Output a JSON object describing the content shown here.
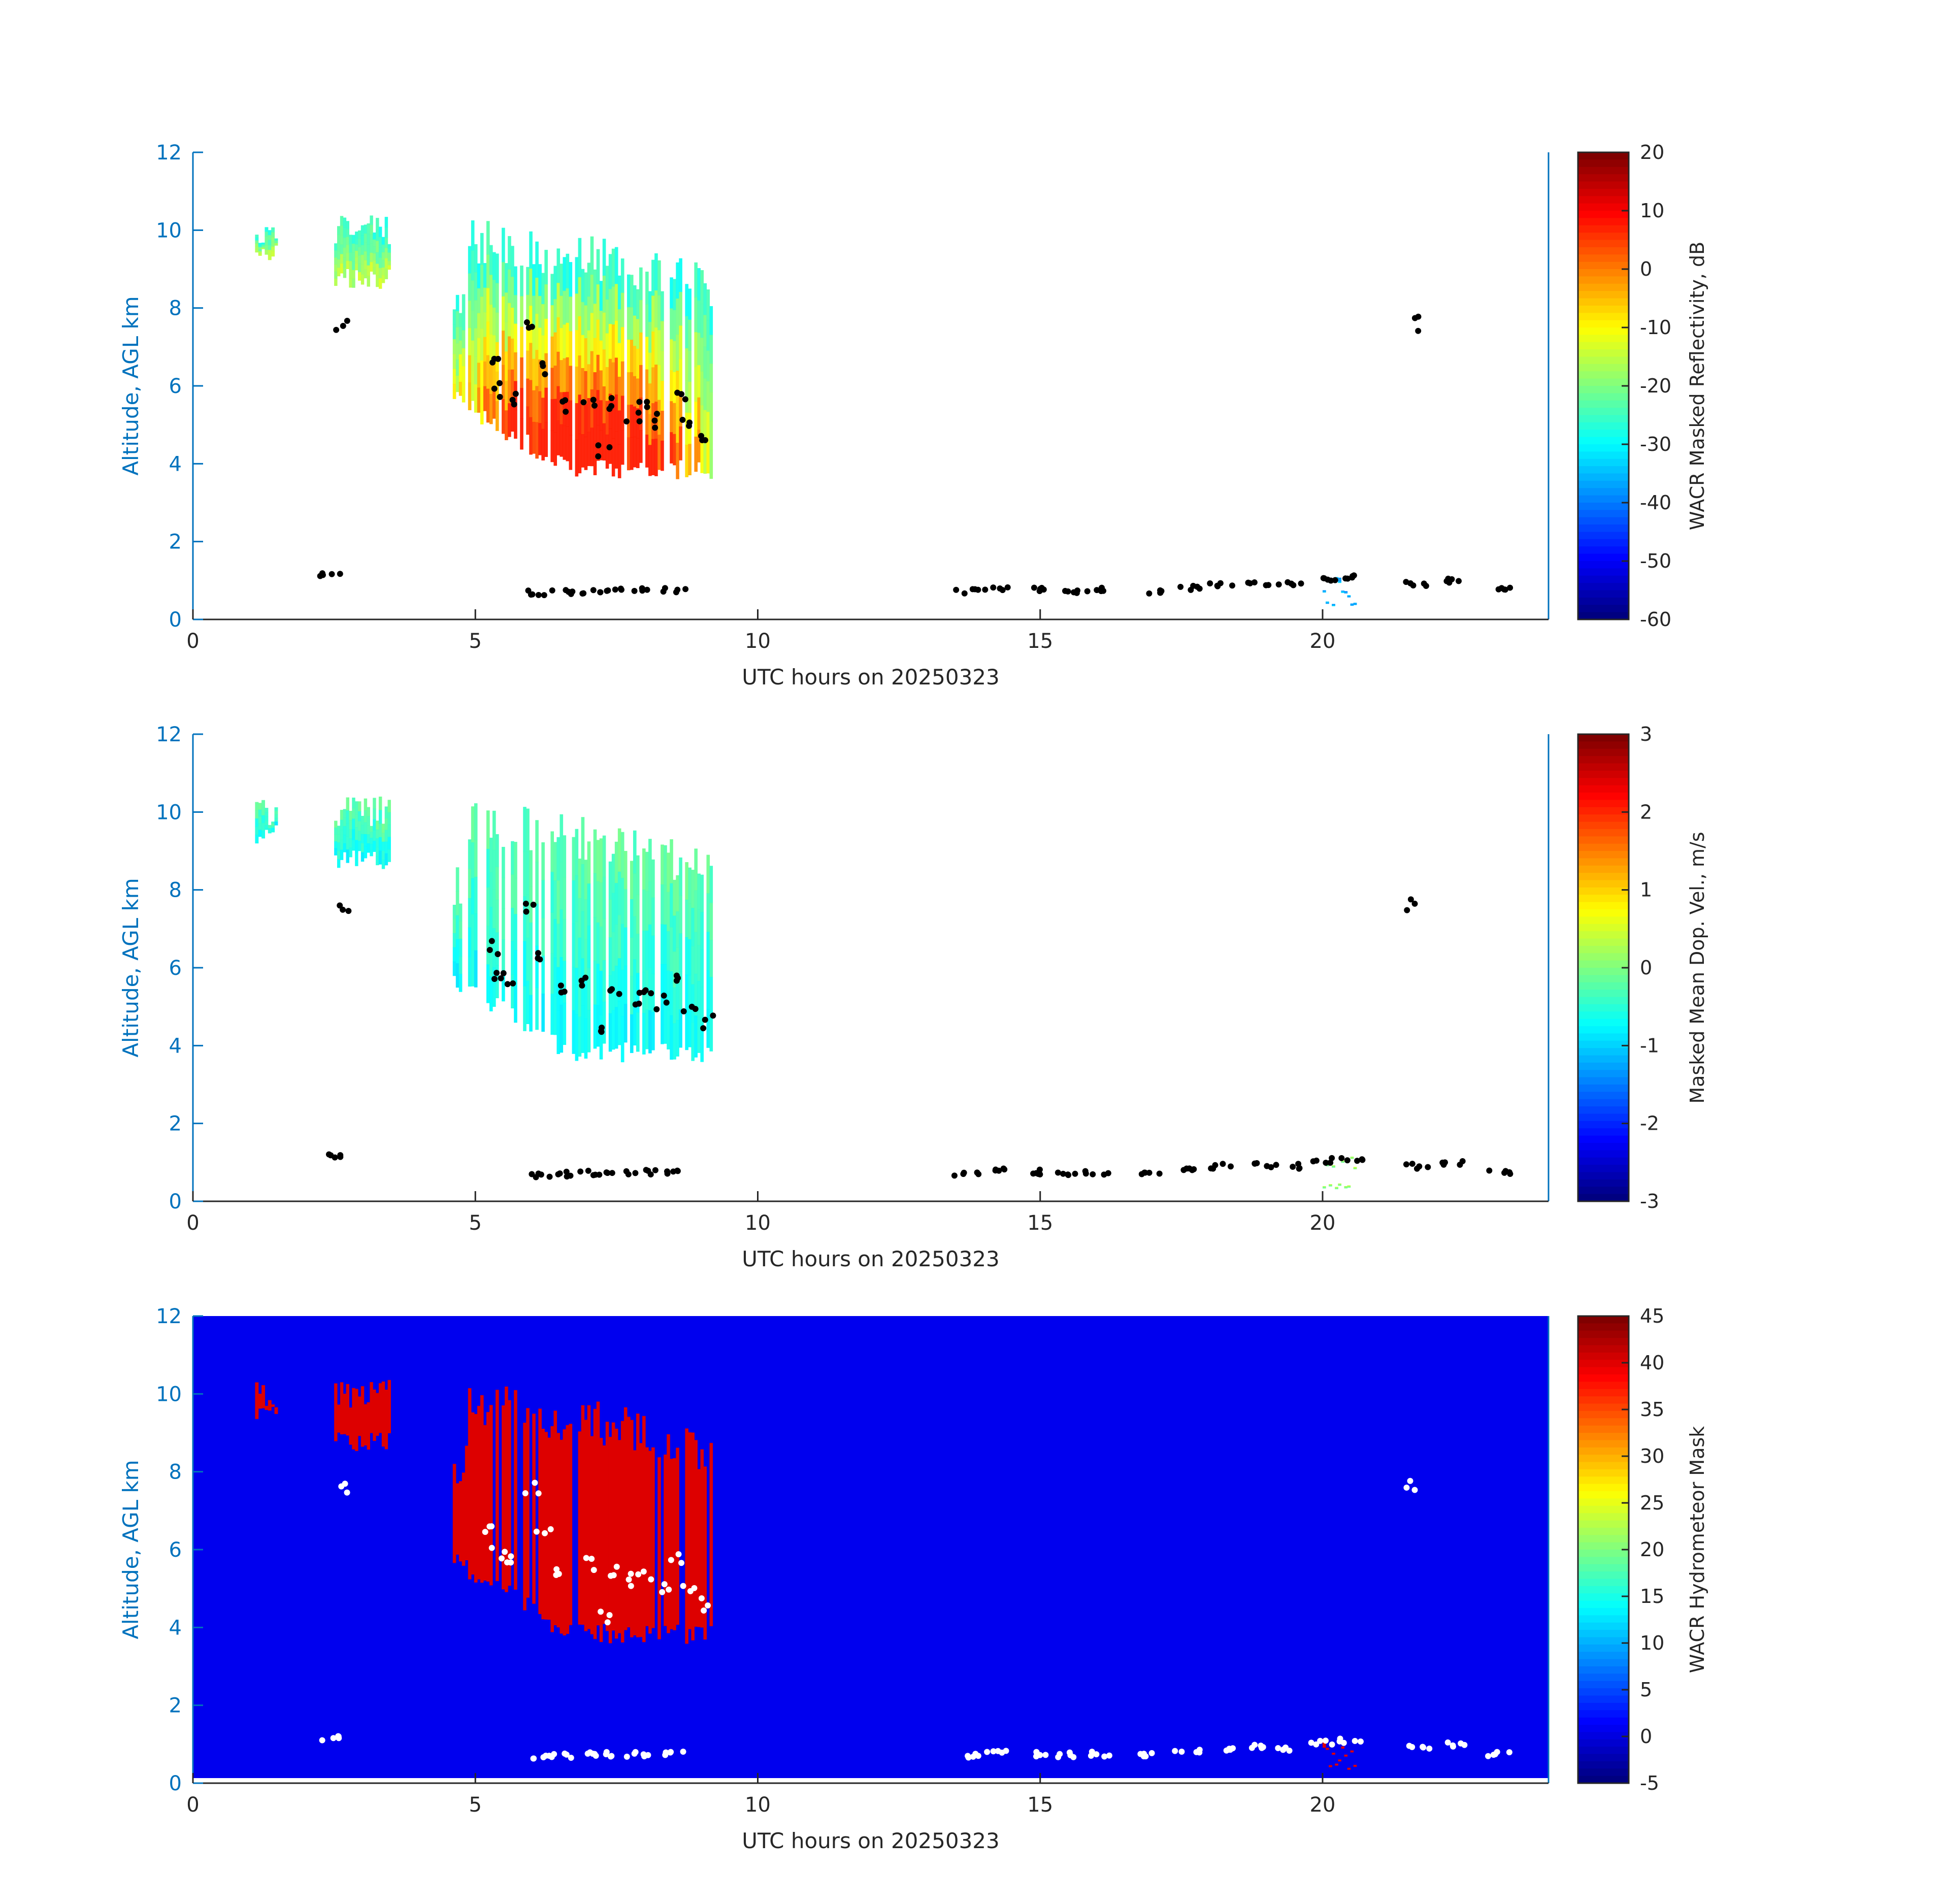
{
  "colors": {
    "axis": "#0072bd",
    "text": "#262626",
    "mask_background": "#0000ee",
    "mask_cloud": "#dd0000",
    "cloud_base_dark": "#000000",
    "cloud_base_light": "#ffffff"
  },
  "chart_data": [
    {
      "type": "heatmap",
      "xlabel": "UTC hours on 20250323",
      "ylabel": "Altitude, AGL km",
      "xlim": [
        0,
        24
      ],
      "ylim": [
        0,
        12
      ],
      "xticks": [
        "0",
        "5",
        "10",
        "15",
        "20"
      ],
      "yticks": [
        "0",
        "2",
        "4",
        "6",
        "8",
        "10",
        "12"
      ],
      "colorbar": {
        "label": "WACR Masked Reflectivity, dB",
        "range": [
          -60,
          20
        ],
        "ticks": [
          "20",
          "10",
          "0",
          "-10",
          "-20",
          "-30",
          "-40",
          "-50",
          "-60"
        ],
        "colormap": "jet"
      },
      "background": "white",
      "field": "reflectivity",
      "marker_color": "black"
    },
    {
      "type": "heatmap",
      "xlabel": "UTC hours on 20250323",
      "ylabel": "Altitude, AGL km",
      "xlim": [
        0,
        24
      ],
      "ylim": [
        0,
        12
      ],
      "xticks": [
        "0",
        "5",
        "10",
        "15",
        "20"
      ],
      "yticks": [
        "0",
        "2",
        "4",
        "6",
        "8",
        "10",
        "12"
      ],
      "colorbar": {
        "label": "Masked Mean Dop. Vel., m/s",
        "range": [
          -3,
          3
        ],
        "ticks": [
          "3",
          "2",
          "1",
          "0",
          "-1",
          "-2",
          "-3"
        ],
        "colormap": "jet"
      },
      "background": "white",
      "field": "velocity",
      "marker_color": "black"
    },
    {
      "type": "heatmap",
      "xlabel": "UTC hours on 20250323",
      "ylabel": "Altitude, AGL km",
      "xlim": [
        0,
        24
      ],
      "ylim": [
        0,
        12
      ],
      "xticks": [
        "0",
        "5",
        "10",
        "15",
        "20"
      ],
      "yticks": [
        "0",
        "2",
        "4",
        "6",
        "8",
        "10",
        "12"
      ],
      "colorbar": {
        "label": "WACR Hydrometeor Mask",
        "range": [
          -5,
          45
        ],
        "ticks": [
          "45",
          "40",
          "35",
          "30",
          "25",
          "20",
          "15",
          "10",
          "5",
          "0",
          "-5"
        ],
        "colormap": "jet"
      },
      "background": "blue",
      "field": "mask",
      "marker_color": "white"
    }
  ],
  "cloud_regions": [
    {
      "name": "main_cirrus",
      "x": [
        4.6,
        9.2
      ],
      "top": 10.3,
      "base": 4.0
    },
    {
      "name": "thin_cirrus_1",
      "x": [
        1.1,
        1.5
      ],
      "top": 10.4,
      "base": 9.2
    },
    {
      "name": "thin_cirrus_2",
      "x": [
        2.5,
        3.5
      ],
      "top": 10.4,
      "base": 8.5
    },
    {
      "name": "low_cloud_2030",
      "x": [
        20.0,
        20.6
      ],
      "top": 1.15,
      "base": 0.8
    }
  ],
  "cloud_base_points": [
    [
      2.65,
      7.6
    ],
    [
      5.3,
      6.5
    ],
    [
      5.4,
      5.9
    ],
    [
      5.6,
      5.7
    ],
    [
      6.0,
      7.6
    ],
    [
      6.2,
      6.4
    ],
    [
      6.5,
      5.5
    ],
    [
      7.0,
      5.6
    ],
    [
      7.3,
      4.3
    ],
    [
      7.5,
      5.5
    ],
    [
      7.8,
      5.2
    ],
    [
      8.0,
      5.4
    ],
    [
      8.3,
      5.1
    ],
    [
      8.6,
      5.8
    ],
    [
      8.8,
      5.0
    ],
    [
      9.1,
      4.6
    ],
    [
      21.6,
      7.6
    ],
    [
      6.1,
      0.68
    ],
    [
      6.5,
      0.7
    ],
    [
      7.0,
      0.73
    ],
    [
      7.5,
      0.74
    ],
    [
      8.0,
      0.75
    ],
    [
      8.5,
      0.76
    ],
    [
      13.7,
      0.72
    ],
    [
      14.2,
      0.78
    ],
    [
      14.9,
      0.75
    ],
    [
      15.5,
      0.73
    ],
    [
      16.0,
      0.75
    ],
    [
      17.0,
      0.72
    ],
    [
      17.6,
      0.8
    ],
    [
      18.2,
      0.9
    ],
    [
      18.9,
      0.92
    ],
    [
      19.4,
      0.9
    ],
    [
      20.0,
      1.05
    ],
    [
      20.5,
      1.1
    ],
    [
      21.7,
      0.9
    ],
    [
      22.3,
      1.0
    ],
    [
      23.1,
      0.75
    ],
    [
      2.4,
      1.15
    ]
  ]
}
